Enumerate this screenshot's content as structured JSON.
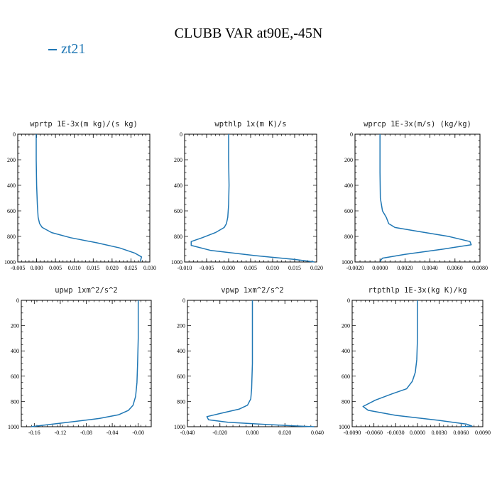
{
  "title": "CLUBB VAR at90E,-45N",
  "legend": {
    "label": "zt21",
    "color": "#1f77b4"
  },
  "chart_data": [
    {
      "type": "line",
      "title": "wprtp  1E-3x(m kg)/(s kg)",
      "xlim": [
        -0.005,
        0.03
      ],
      "xticks": [
        -0.005,
        0.0,
        0.005,
        0.01,
        0.015,
        0.02,
        0.025,
        0.03
      ],
      "xticklabels": [
        "-0.005",
        "0.000",
        "0.005",
        "0.010",
        "0.015",
        "0.020",
        "0.025",
        "0.030"
      ],
      "ylim": [
        1000,
        0
      ],
      "yticks": [
        0,
        200,
        400,
        600,
        800,
        1000
      ],
      "series": [
        {
          "name": "zt21",
          "color": "#1f77b4",
          "x": [
            -0.0001,
            -0.0001,
            0.0,
            0.0002,
            0.0004,
            0.0008,
            0.0015,
            0.004,
            0.009,
            0.016,
            0.022,
            0.026,
            0.0278,
            0.0275
          ],
          "y": [
            0,
            200,
            400,
            550,
            650,
            700,
            730,
            770,
            810,
            850,
            890,
            930,
            960,
            995
          ]
        }
      ]
    },
    {
      "type": "line",
      "title": "wpthlp  1x(m K)/s",
      "xlim": [
        -0.01,
        0.02
      ],
      "xticks": [
        -0.01,
        -0.005,
        0.0,
        0.005,
        0.01,
        0.015,
        0.02
      ],
      "xticklabels": [
        "-0.010",
        "-0.005",
        "0.000",
        "0.005",
        "0.010",
        "0.015",
        "0.020"
      ],
      "ylim": [
        1000,
        0
      ],
      "yticks": [
        0,
        200,
        400,
        600,
        800,
        1000
      ],
      "series": [
        {
          "name": "zt21",
          "color": "#1f77b4",
          "x": [
            0.0,
            0.0,
            0.0001,
            0.0,
            -0.0002,
            -0.0005,
            -0.001,
            -0.003,
            -0.006,
            -0.0085,
            -0.0085,
            -0.004,
            0.006,
            0.015,
            0.0195
          ],
          "y": [
            0,
            200,
            400,
            550,
            650,
            700,
            730,
            770,
            810,
            840,
            870,
            910,
            950,
            980,
            1000
          ]
        }
      ]
    },
    {
      "type": "line",
      "title": "wprcp  1E-3x(m/s) (kg/kg)",
      "xlim": [
        -0.002,
        0.008
      ],
      "xticks": [
        -0.002,
        0.0,
        0.002,
        0.004,
        0.006,
        0.008
      ],
      "xticklabels": [
        "-0.0020",
        "0.0000",
        "0.0020",
        "0.0040",
        "0.0060",
        "0.0080"
      ],
      "ylim": [
        1000,
        0
      ],
      "yticks": [
        0,
        200,
        400,
        600,
        800,
        1000
      ],
      "series": [
        {
          "name": "zt21",
          "color": "#1f77b4",
          "x": [
            0.0,
            0.0,
            3e-05,
            0.0002,
            0.0005,
            0.0007,
            0.0012,
            0.003,
            0.0055,
            0.0072,
            0.0073,
            0.005,
            0.002,
            0.0002,
            0.0
          ],
          "y": [
            0,
            300,
            500,
            600,
            650,
            700,
            730,
            760,
            800,
            840,
            865,
            900,
            940,
            970,
            995
          ]
        }
      ]
    },
    {
      "type": "line",
      "title": "upwp  1xm^2/s^2",
      "xlim": [
        -0.18,
        0.02
      ],
      "xticks": [
        -0.16,
        -0.12,
        -0.08,
        -0.04,
        0.0
      ],
      "xticklabels": [
        "-0.16",
        "-0.12",
        "-0.08",
        "-0.04",
        "-0.00"
      ],
      "ylim": [
        1000,
        0
      ],
      "yticks": [
        0,
        200,
        400,
        600,
        800,
        1000
      ],
      "series": [
        {
          "name": "zt21",
          "color": "#1f77b4",
          "x": [
            0.0,
            0.0,
            -0.001,
            -0.002,
            -0.004,
            -0.008,
            -0.015,
            -0.03,
            -0.06,
            -0.1,
            -0.14,
            -0.165
          ],
          "y": [
            0,
            300,
            500,
            650,
            760,
            830,
            870,
            905,
            935,
            960,
            985,
            1000
          ]
        }
      ]
    },
    {
      "type": "line",
      "title": "vpwp  1xm^2/s^2",
      "xlim": [
        -0.04,
        0.04
      ],
      "xticks": [
        -0.04,
        -0.02,
        0.0,
        0.02,
        0.04
      ],
      "xticklabels": [
        "-0.040",
        "-0.020",
        "0.000",
        "0.020",
        "0.040"
      ],
      "ylim": [
        1000,
        0
      ],
      "yticks": [
        0,
        200,
        400,
        600,
        800,
        1000
      ],
      "series": [
        {
          "name": "zt21",
          "color": "#1f77b4",
          "x": [
            0.0,
            0.0,
            0.0,
            -0.0005,
            -0.001,
            -0.003,
            -0.008,
            -0.018,
            -0.028,
            -0.027,
            -0.015,
            0.005,
            0.025,
            0.038
          ],
          "y": [
            0,
            200,
            500,
            700,
            780,
            830,
            860,
            890,
            920,
            945,
            965,
            980,
            993,
            1000
          ]
        }
      ]
    },
    {
      "type": "line",
      "title": "rtpthlp  1E-3x(kg K)/kg",
      "xlim": [
        -0.009,
        0.009
      ],
      "xticks": [
        -0.009,
        -0.006,
        -0.003,
        0.0,
        0.003,
        0.006,
        0.009
      ],
      "xticklabels": [
        "-0.0090",
        "-0.0060",
        "-0.0030",
        "0.0000",
        "0.0030",
        "0.0060",
        "0.0090"
      ],
      "ylim": [
        1000,
        0
      ],
      "yticks": [
        0,
        200,
        400,
        600,
        800,
        1000
      ],
      "series": [
        {
          "name": "zt21",
          "color": "#1f77b4",
          "x": [
            0.0,
            0.0,
            -0.0001,
            -0.0003,
            -0.0007,
            -0.0015,
            -0.0035,
            -0.0058,
            -0.0075,
            -0.0068,
            -0.003,
            0.003,
            0.0068,
            0.0075,
            0.006
          ],
          "y": [
            0,
            300,
            470,
            570,
            640,
            700,
            740,
            790,
            840,
            870,
            910,
            950,
            980,
            995,
            1000
          ]
        }
      ]
    }
  ]
}
